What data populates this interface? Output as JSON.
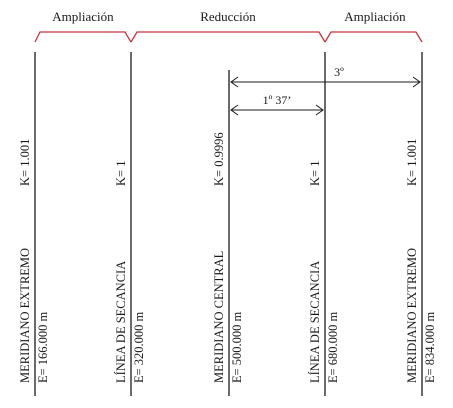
{
  "zones": {
    "left": "Ampliación",
    "center": "Reducción",
    "right": "Ampliación"
  },
  "angles": {
    "full": "3º",
    "partial": "1º 37’"
  },
  "meridians": [
    {
      "name": "MERIDIANO EXTREMO",
      "k": "K= 1.001",
      "e": "E= 166.000 m"
    },
    {
      "name": "LÍNEA DE SECANCIA",
      "k": "K= 1",
      "e": "E= 320.000 m"
    },
    {
      "name": "MERIDIANO CENTRAL",
      "k": "K= 0.9996",
      "e": "E= 500.000 m"
    },
    {
      "name": "LÍNEA DE SECANCIA",
      "k": "K= 1",
      "e": "E= 680.000 m"
    },
    {
      "name": "MERIDIANO EXTREMO",
      "k": "K= 1.001",
      "e": "E= 834.000 m"
    }
  ],
  "colors": {
    "brace": "#c8343e",
    "ink": "#1a1a1a"
  }
}
